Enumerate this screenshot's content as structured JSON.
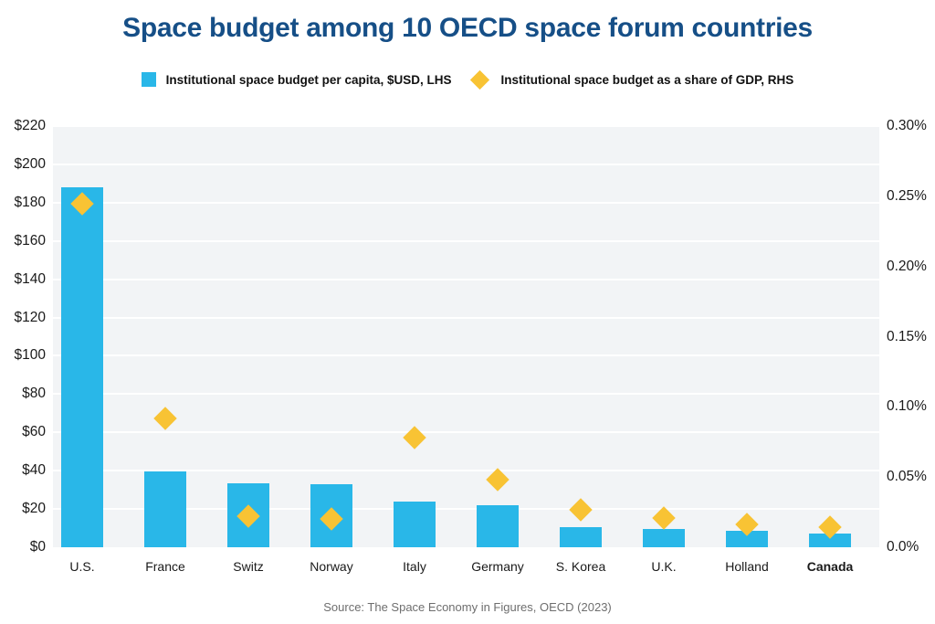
{
  "title": "Space budget among 10 OECD space forum countries",
  "source": "Source: The Space Economy in Figures, OECD (2023)",
  "legend": [
    {
      "label": "Institutional space budget per capita, $USD, LHS",
      "marker": "square"
    },
    {
      "label": "Institutional space budget as a share of GDP, RHS",
      "marker": "diamond"
    }
  ],
  "colors": {
    "bar": "#29b7e8",
    "diamond": "#f8c334",
    "title": "#164f87",
    "plot_bg": "#f2f4f6",
    "grid": "#ffffff",
    "axis_text": "#1a1a1a",
    "source_text": "#6e6e6e"
  },
  "chart_data": {
    "type": "bar",
    "subtype": "dual-axis combo: bars (left axis) + diamond markers (right axis)",
    "categories": [
      "U.S.",
      "France",
      "Switz",
      "Norway",
      "Italy",
      "Germany",
      "S. Korea",
      "U.K.",
      "Holland",
      "Canada"
    ],
    "emphasized_category": "Canada",
    "series": [
      {
        "name": "Institutional space budget per capita, $USD, LHS",
        "type": "bar",
        "axis": "left",
        "values": [
          188,
          39.5,
          33.5,
          33,
          24,
          22,
          10.5,
          9.5,
          8.5,
          7
        ]
      },
      {
        "name": "Institutional space budget as a share of GDP, RHS",
        "type": "scatter-diamond",
        "axis": "right",
        "values": [
          0.245,
          0.092,
          0.022,
          0.02,
          0.078,
          0.048,
          0.027,
          0.021,
          0.016,
          0.014
        ]
      }
    ],
    "left_axis": {
      "min": 0,
      "max": 220,
      "tick_step": 20,
      "tick_labels": [
        "$0",
        "$20",
        "$40",
        "$60",
        "$80",
        "$100",
        "$120",
        "$140",
        "$160",
        "$180",
        "$200",
        "$220"
      ]
    },
    "right_axis": {
      "min": 0,
      "max": 0.3,
      "tick_step": 0.05,
      "tick_labels": [
        "0.0%",
        "0.05%",
        "0.10%",
        "0.15%",
        "0.20%",
        "0.25%",
        "0.30%"
      ]
    },
    "grid": "horizontal white gridlines on light-gray panel, every $20",
    "legend_position": "top-center"
  }
}
